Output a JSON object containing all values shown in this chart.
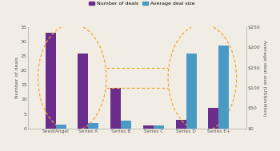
{
  "categories": [
    "Seed/Angel",
    "Series A",
    "Series B",
    "Series C",
    "Series D",
    "Series E+"
  ],
  "deals": [
    33,
    26,
    14,
    1,
    3,
    7
  ],
  "avg_size": [
    10,
    13,
    20,
    8,
    185,
    205
  ],
  "bar_width": 0.32,
  "deals_color": "#6B2D8B",
  "size_color": "#4A9BC4",
  "ylim_left": [
    0,
    35
  ],
  "ylim_right": [
    0,
    250
  ],
  "yticks_left": [
    0,
    5,
    10,
    15,
    20,
    25,
    30,
    35
  ],
  "yticks_right": [
    0,
    50,
    100,
    150,
    200,
    250
  ],
  "ytick_labels_right": [
    "$0",
    "$50",
    "$100",
    "$150",
    "$200",
    "$250"
  ],
  "ylabel_left": "Number of deals",
  "ylabel_right": "Average deal size (US$million)",
  "legend_deals": "Number of deals",
  "legend_size": "Average deal size",
  "ellipse_color": "#E8A830",
  "bg_color": "#F2EDE4",
  "tick_color": "#555555",
  "spine_color": "#AAAAAA"
}
